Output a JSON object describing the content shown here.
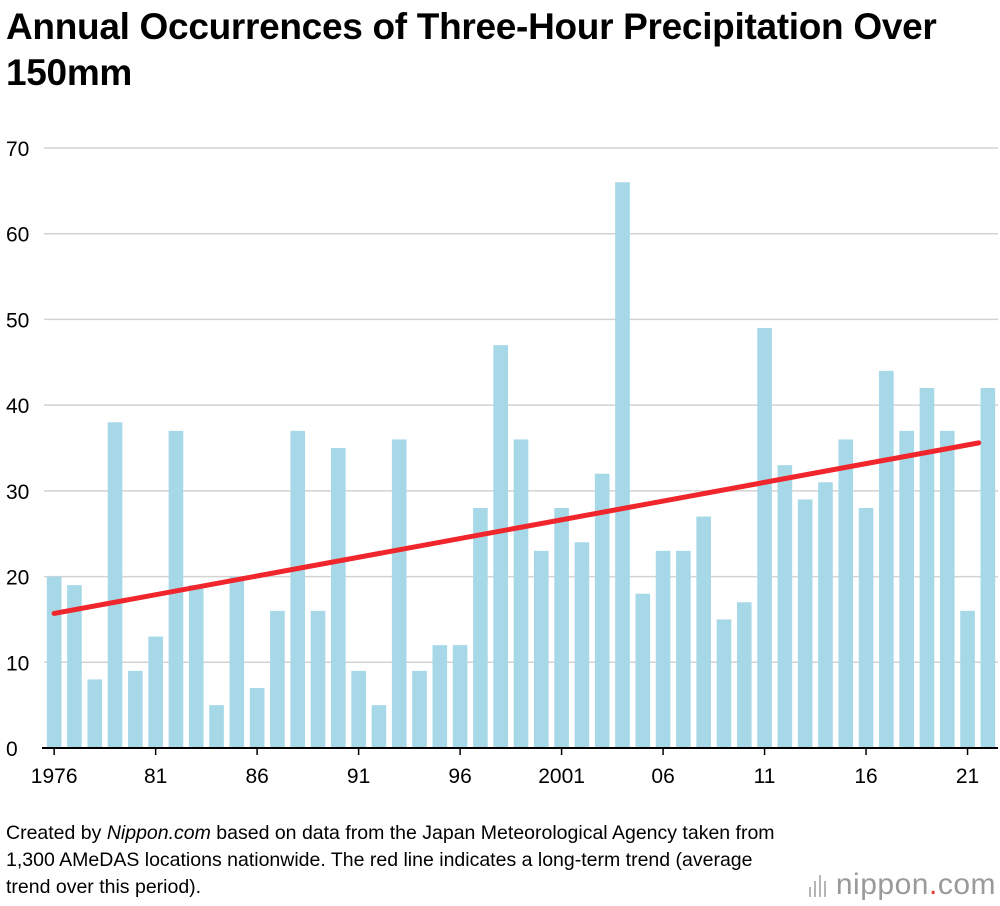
{
  "chart_data": {
    "type": "bar",
    "title": "Annual Occurrences of Three-Hour Precipitation Over 150mm",
    "xlabel": "",
    "ylabel": "",
    "ylim": [
      0,
      70
    ],
    "yticks": [
      "0",
      "10",
      "20",
      "30",
      "40",
      "50",
      "60",
      "70"
    ],
    "grid": true,
    "years": [
      1976,
      1977,
      1978,
      1979,
      1980,
      1981,
      1982,
      1983,
      1984,
      1985,
      1986,
      1987,
      1988,
      1989,
      1990,
      1991,
      1992,
      1993,
      1994,
      1995,
      1996,
      1997,
      1998,
      1999,
      2000,
      2001,
      2002,
      2003,
      2004,
      2005,
      2006,
      2007,
      2008,
      2009,
      2010,
      2011,
      2012,
      2013,
      2014,
      2015,
      2016,
      2017,
      2018,
      2019,
      2020,
      2021,
      2022
    ],
    "values": [
      20,
      19,
      8,
      38,
      9,
      13,
      37,
      19,
      5,
      20,
      7,
      16,
      37,
      16,
      35,
      9,
      5,
      36,
      9,
      12,
      12,
      28,
      47,
      36,
      23,
      28,
      24,
      32,
      66,
      18,
      23,
      23,
      27,
      15,
      17,
      49,
      33,
      29,
      31,
      36,
      28,
      44,
      37,
      42,
      37,
      16,
      42
    ],
    "xtick_labels": [
      {
        "year": 1976,
        "label": "1976"
      },
      {
        "year": 1981,
        "label": "81"
      },
      {
        "year": 1986,
        "label": "86"
      },
      {
        "year": 1991,
        "label": "91"
      },
      {
        "year": 1996,
        "label": "96"
      },
      {
        "year": 2001,
        "label": "2001"
      },
      {
        "year": 2006,
        "label": "06"
      },
      {
        "year": 2011,
        "label": "11"
      },
      {
        "year": 2016,
        "label": "16"
      },
      {
        "year": 2021,
        "label": "21"
      }
    ],
    "trend": {
      "name": "long-term trend",
      "start": 15.7,
      "end": 35.6
    },
    "colors": {
      "bar": "#a6d8e8",
      "trend": "#f0262c",
      "grid": "#d3d3d3",
      "axis": "#000000"
    }
  },
  "caption": {
    "prefix": "Created by ",
    "source": "Nippon.com",
    "suffix": " based on data from the Japan Meteorological Agency taken from 1,300 AMeDAS locations nationwide. The red line indicates a long-term trend (average trend over this period)."
  },
  "logo": {
    "text": "nippon",
    "dot": ".",
    "tld": "com"
  }
}
